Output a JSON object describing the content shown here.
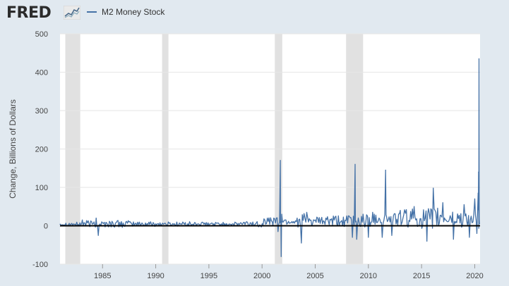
{
  "header": {
    "logo_text": "FRED",
    "logo_icon": "chart-line-icon",
    "legend_label": "M2 Money Stock"
  },
  "colors": {
    "series": "#4572a7",
    "recession": "#e1e1e1",
    "background": "#e1e9f0",
    "plot": "#ffffff",
    "zero_line": "#000000"
  },
  "chart_data": {
    "type": "line",
    "title": "",
    "xlabel": "",
    "ylabel": "Change, Billions of Dollars",
    "xlim": [
      1981,
      2020.5
    ],
    "ylim": [
      -100,
      500
    ],
    "yticks": [
      -100,
      0,
      100,
      200,
      300,
      400,
      500
    ],
    "xticks": [
      1985,
      1990,
      1995,
      2000,
      2005,
      2010,
      2015,
      2020
    ],
    "grid": true,
    "legend_position": "top-left",
    "recessions": [
      [
        1981.5,
        1982.9
      ],
      [
        1990.6,
        1991.2
      ],
      [
        2001.2,
        2001.9
      ],
      [
        2007.9,
        2009.5
      ]
    ],
    "series": [
      {
        "name": "M2 Money Stock",
        "x": [
          1981,
          1982.5,
          1983.1,
          1984.2,
          1984.4,
          1984.6,
          1987.5,
          1990,
          1993.5,
          1995,
          1998,
          2000.5,
          2001.1,
          2001.5,
          2001.72,
          2001.75,
          2001.8,
          2001.85,
          2002,
          2003.3,
          2003.7,
          2004.2,
          2005,
          2006,
          2008.2,
          2008.5,
          2008.75,
          2008.8,
          2008.9,
          2009.5,
          2010,
          2010.4,
          2011.0,
          2011.3,
          2011.62,
          2011.7,
          2012.2,
          2013,
          2014.3,
          2015.5,
          2016.1,
          2017,
          2018,
          2019,
          2019.5,
          2020.0,
          2020.2,
          2020.32,
          2020.36,
          2020.4,
          2020.45
        ],
        "values": [
          4,
          2,
          15,
          10,
          20,
          -25,
          10,
          5,
          4,
          2,
          8,
          20,
          20,
          -15,
          170,
          10,
          -80,
          30,
          10,
          20,
          -45,
          35,
          15,
          20,
          25,
          -30,
          160,
          10,
          -35,
          30,
          -30,
          35,
          20,
          -30,
          145,
          25,
          -25,
          40,
          50,
          -40,
          98,
          60,
          -35,
          55,
          -30,
          70,
          -20,
          85,
          140,
          435,
          5
        ]
      }
    ]
  }
}
